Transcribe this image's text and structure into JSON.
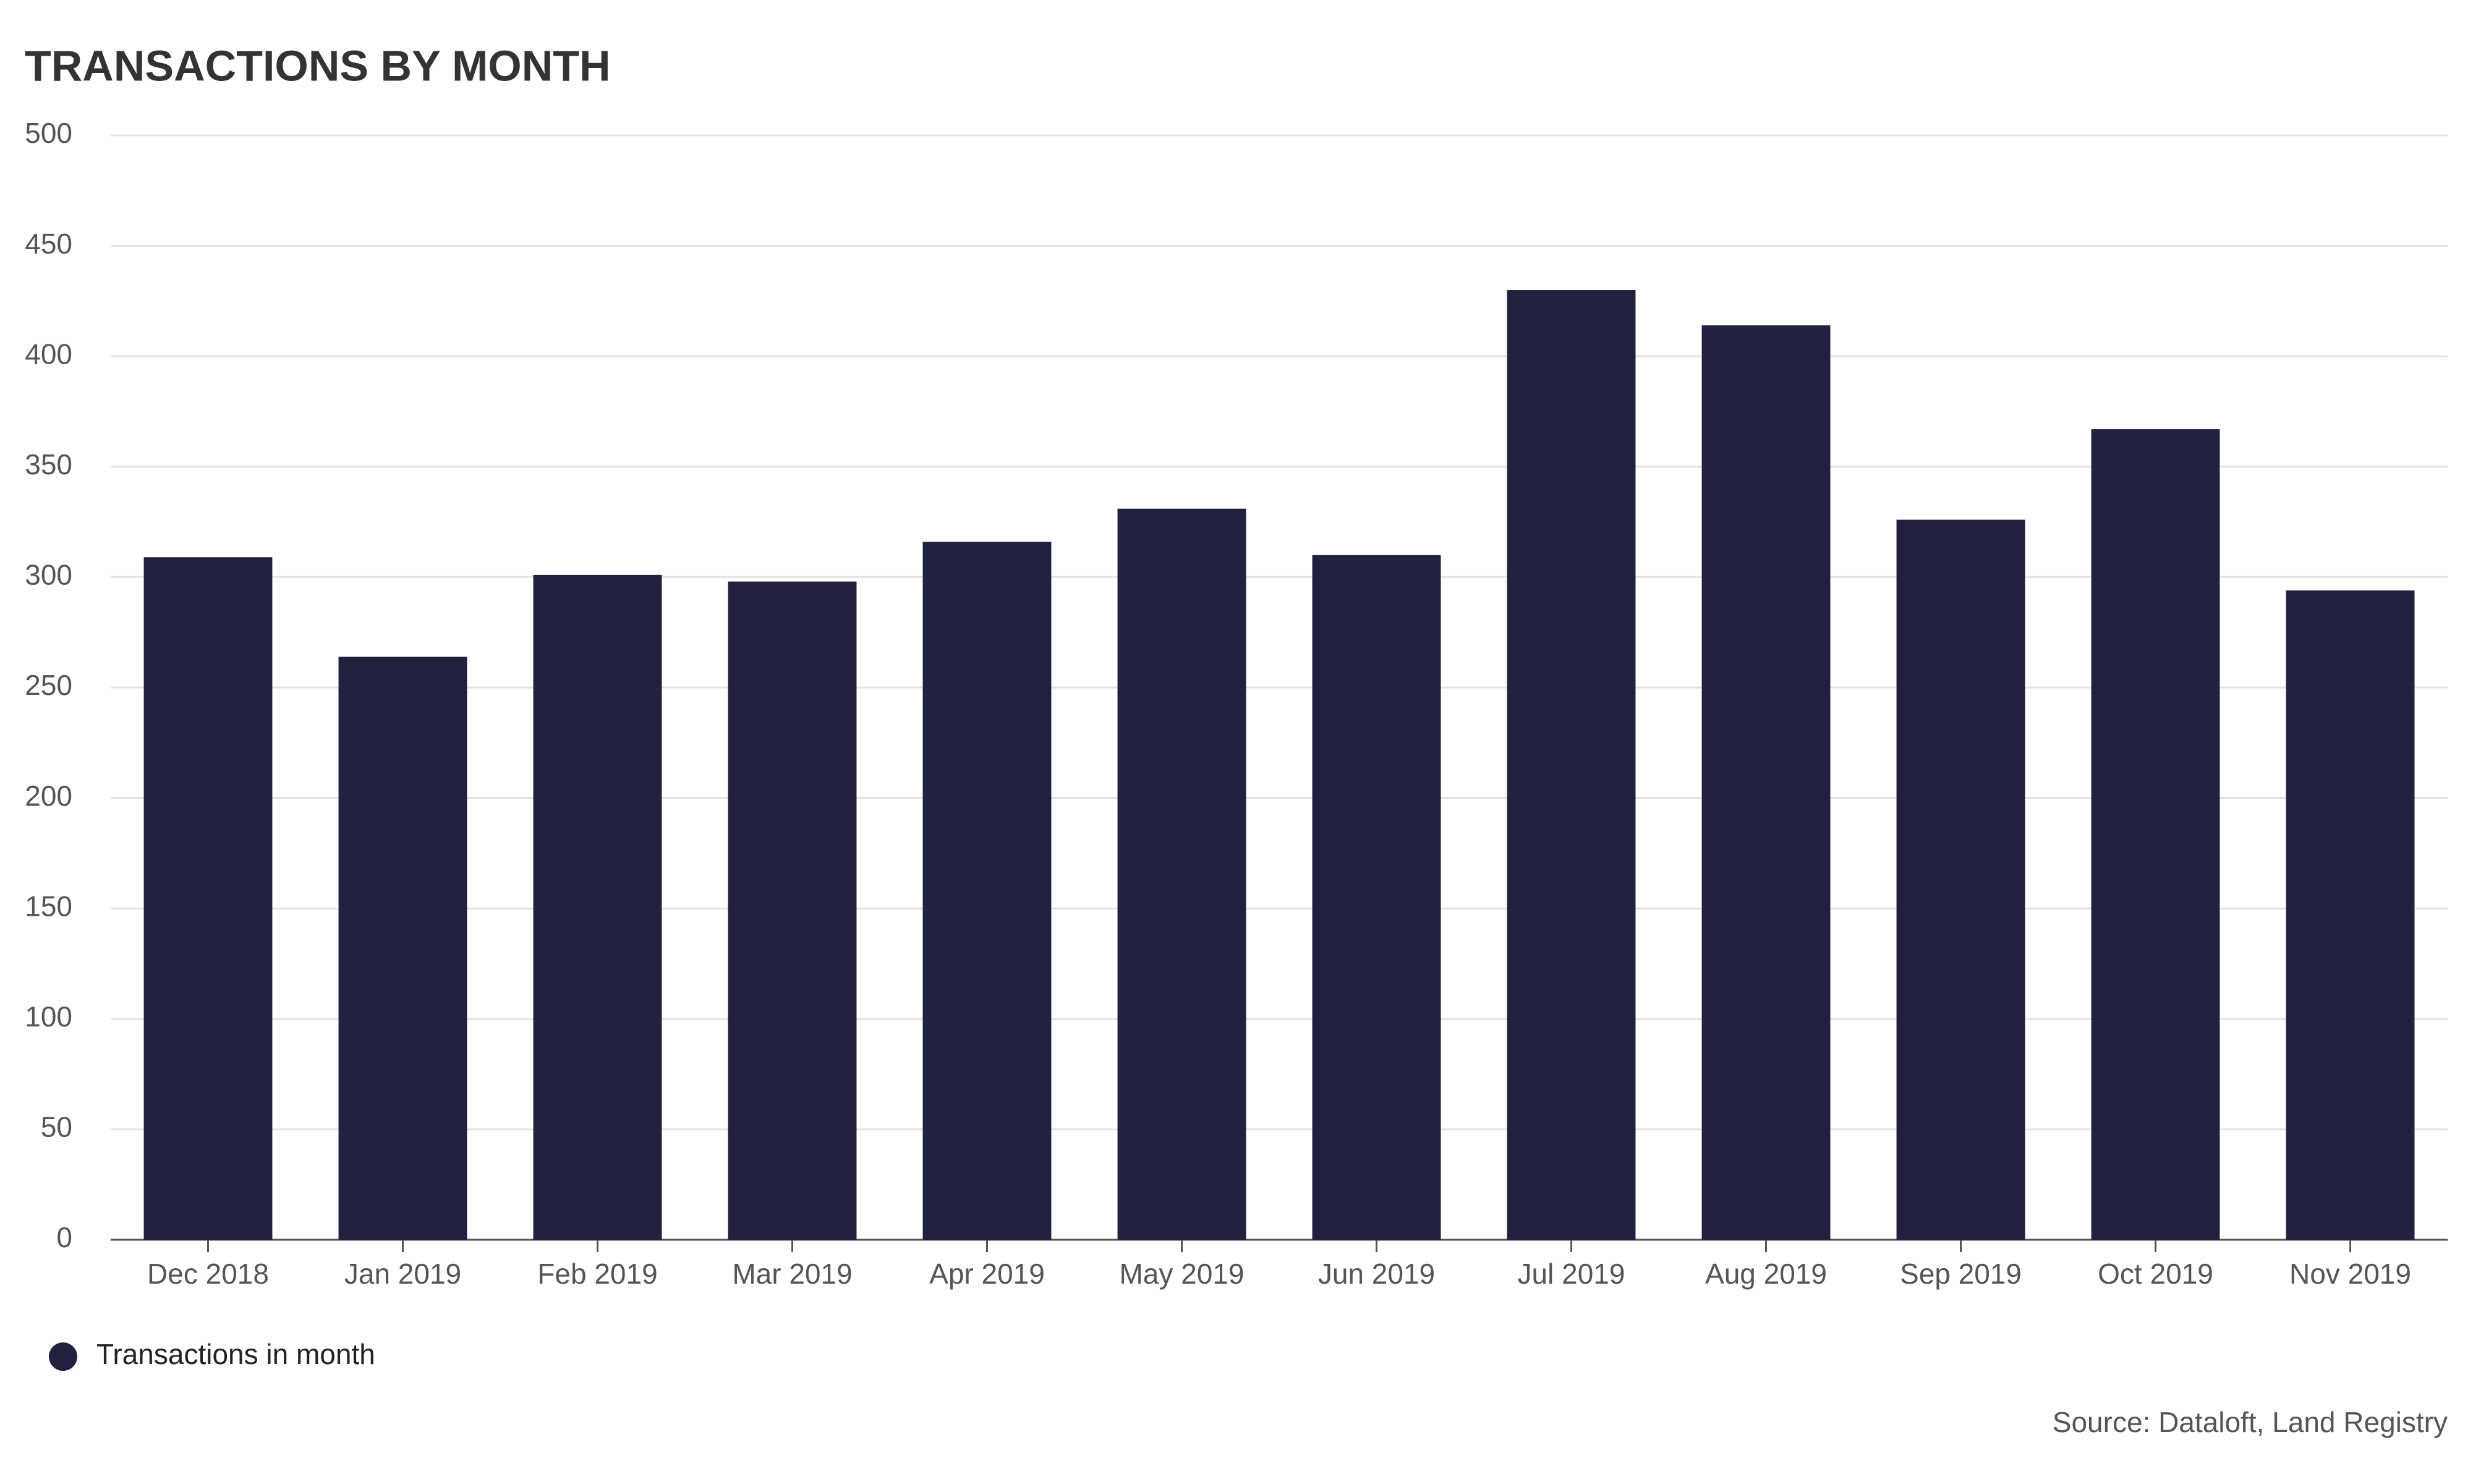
{
  "chart_data": {
    "type": "bar",
    "title": "TRANSACTIONS BY MONTH",
    "categories": [
      "Dec 2018",
      "Jan 2019",
      "Feb 2019",
      "Mar 2019",
      "Apr 2019",
      "May 2019",
      "Jun 2019",
      "Jul 2019",
      "Aug 2019",
      "Sep 2019",
      "Oct 2019",
      "Nov 2019"
    ],
    "series": [
      {
        "name": "Transactions in month",
        "color": "#20203f",
        "values": [
          309,
          264,
          301,
          298,
          316,
          331,
          310,
          430,
          414,
          326,
          367,
          294
        ]
      }
    ],
    "ylim": [
      0,
      500
    ],
    "yticks": [
      0,
      50,
      100,
      150,
      200,
      250,
      300,
      350,
      400,
      450,
      500
    ],
    "grid": true,
    "legend": "bottom-left",
    "source": "Source: Dataloft, Land Registry"
  }
}
